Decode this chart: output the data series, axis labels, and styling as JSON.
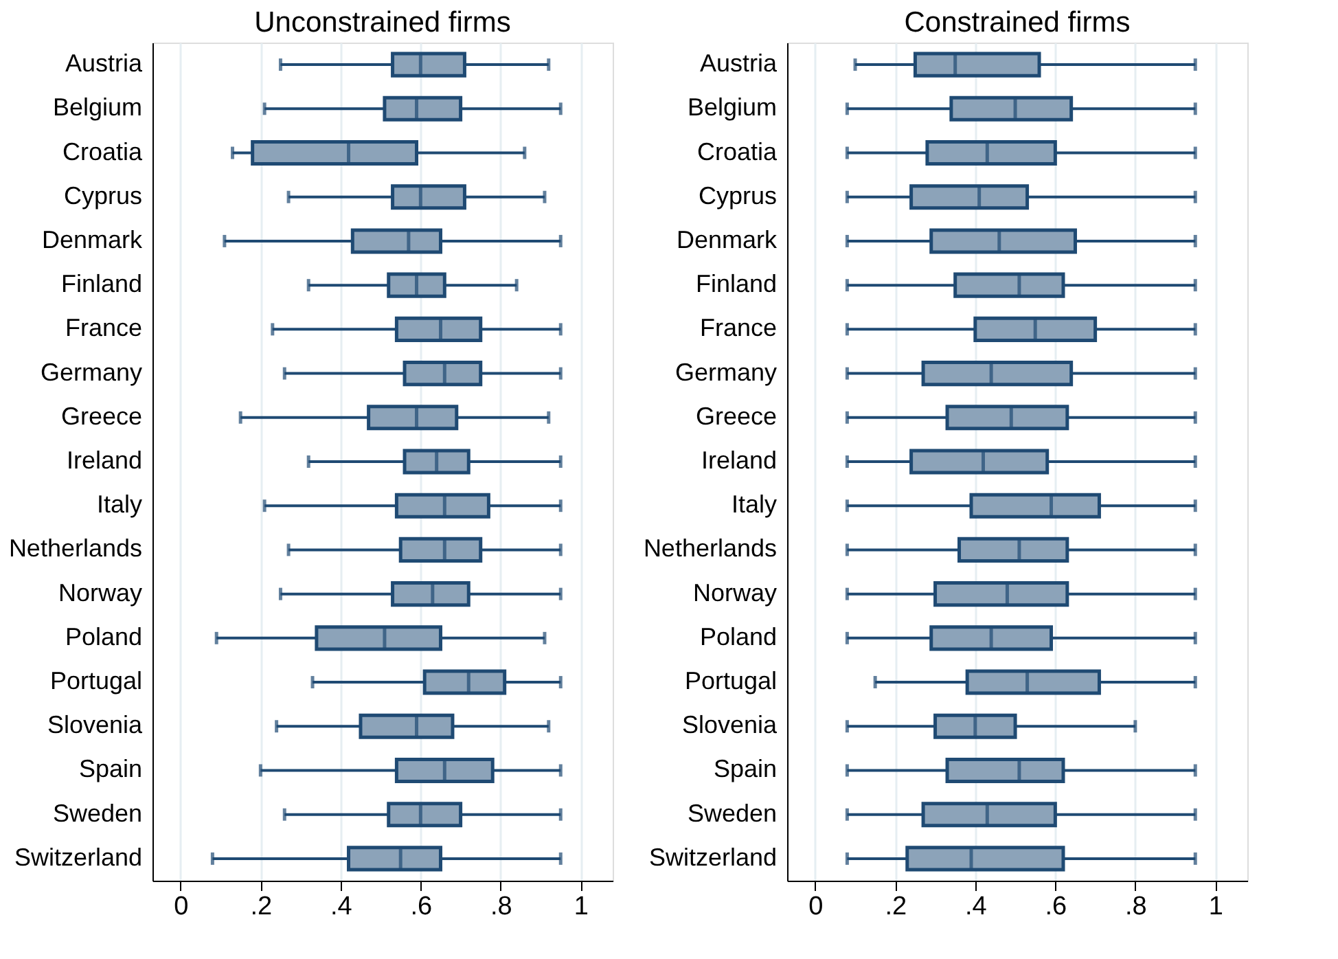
{
  "chart_data": [
    {
      "type": "box",
      "orientation": "horizontal",
      "title": "Unconstrained firms",
      "color": "#8ca3b9",
      "grid": "x",
      "categories": [
        "Austria",
        "Belgium",
        "Croatia",
        "Cyprus",
        "Denmark",
        "Finland",
        "France",
        "Germany",
        "Greece",
        "Ireland",
        "Italy",
        "Netherlands",
        "Norway",
        "Poland",
        "Portugal",
        "Slovenia",
        "Spain",
        "Sweden",
        "Switzerland"
      ],
      "boxes": [
        {
          "low": 0.25,
          "q1": 0.53,
          "median": 0.6,
          "q3": 0.71,
          "high": 0.92
        },
        {
          "low": 0.21,
          "q1": 0.51,
          "median": 0.59,
          "q3": 0.7,
          "high": 0.95
        },
        {
          "low": 0.13,
          "q1": 0.18,
          "median": 0.42,
          "q3": 0.59,
          "high": 0.86
        },
        {
          "low": 0.27,
          "q1": 0.53,
          "median": 0.6,
          "q3": 0.71,
          "high": 0.91
        },
        {
          "low": 0.11,
          "q1": 0.43,
          "median": 0.57,
          "q3": 0.65,
          "high": 0.95
        },
        {
          "low": 0.32,
          "q1": 0.52,
          "median": 0.59,
          "q3": 0.66,
          "high": 0.84
        },
        {
          "low": 0.23,
          "q1": 0.54,
          "median": 0.65,
          "q3": 0.75,
          "high": 0.95
        },
        {
          "low": 0.26,
          "q1": 0.56,
          "median": 0.66,
          "q3": 0.75,
          "high": 0.95
        },
        {
          "low": 0.15,
          "q1": 0.47,
          "median": 0.59,
          "q3": 0.69,
          "high": 0.92
        },
        {
          "low": 0.32,
          "q1": 0.56,
          "median": 0.64,
          "q3": 0.72,
          "high": 0.95
        },
        {
          "low": 0.21,
          "q1": 0.54,
          "median": 0.66,
          "q3": 0.77,
          "high": 0.95
        },
        {
          "low": 0.27,
          "q1": 0.55,
          "median": 0.66,
          "q3": 0.75,
          "high": 0.95
        },
        {
          "low": 0.25,
          "q1": 0.53,
          "median": 0.63,
          "q3": 0.72,
          "high": 0.95
        },
        {
          "low": 0.09,
          "q1": 0.34,
          "median": 0.51,
          "q3": 0.65,
          "high": 0.91
        },
        {
          "low": 0.33,
          "q1": 0.61,
          "median": 0.72,
          "q3": 0.81,
          "high": 0.95
        },
        {
          "low": 0.24,
          "q1": 0.45,
          "median": 0.59,
          "q3": 0.68,
          "high": 0.92
        },
        {
          "low": 0.2,
          "q1": 0.54,
          "median": 0.66,
          "q3": 0.78,
          "high": 0.95
        },
        {
          "low": 0.26,
          "q1": 0.52,
          "median": 0.6,
          "q3": 0.7,
          "high": 0.95
        },
        {
          "low": 0.08,
          "q1": 0.42,
          "median": 0.55,
          "q3": 0.65,
          "high": 0.95
        }
      ],
      "xlim": [
        -0.07,
        1.08
      ],
      "xticks": [
        0,
        {
          "value": 0.2,
          "label": ".2"
        },
        {
          "value": 0.4,
          "label": ".4"
        },
        {
          "value": 0.6,
          "label": ".6"
        },
        {
          "value": 0.8,
          "label": ".8"
        },
        1
      ]
    },
    {
      "type": "box",
      "orientation": "horizontal",
      "title": "Constrained firms",
      "color": "#8ca3b9",
      "grid": "x",
      "categories": [
        "Austria",
        "Belgium",
        "Croatia",
        "Cyprus",
        "Denmark",
        "Finland",
        "France",
        "Germany",
        "Greece",
        "Ireland",
        "Italy",
        "Netherlands",
        "Norway",
        "Poland",
        "Portugal",
        "Slovenia",
        "Spain",
        "Sweden",
        "Switzerland"
      ],
      "boxes": [
        {
          "low": 0.1,
          "q1": 0.25,
          "median": 0.35,
          "q3": 0.56,
          "high": 0.95
        },
        {
          "low": 0.08,
          "q1": 0.34,
          "median": 0.5,
          "q3": 0.64,
          "high": 0.95
        },
        {
          "low": 0.08,
          "q1": 0.28,
          "median": 0.43,
          "q3": 0.6,
          "high": 0.95
        },
        {
          "low": 0.08,
          "q1": 0.24,
          "median": 0.41,
          "q3": 0.53,
          "high": 0.95
        },
        {
          "low": 0.08,
          "q1": 0.29,
          "median": 0.46,
          "q3": 0.65,
          "high": 0.95
        },
        {
          "low": 0.08,
          "q1": 0.35,
          "median": 0.51,
          "q3": 0.62,
          "high": 0.95
        },
        {
          "low": 0.08,
          "q1": 0.4,
          "median": 0.55,
          "q3": 0.7,
          "high": 0.95
        },
        {
          "low": 0.08,
          "q1": 0.27,
          "median": 0.44,
          "q3": 0.64,
          "high": 0.95
        },
        {
          "low": 0.08,
          "q1": 0.33,
          "median": 0.49,
          "q3": 0.63,
          "high": 0.95
        },
        {
          "low": 0.08,
          "q1": 0.24,
          "median": 0.42,
          "q3": 0.58,
          "high": 0.95
        },
        {
          "low": 0.08,
          "q1": 0.39,
          "median": 0.59,
          "q3": 0.71,
          "high": 0.95
        },
        {
          "low": 0.08,
          "q1": 0.36,
          "median": 0.51,
          "q3": 0.63,
          "high": 0.95
        },
        {
          "low": 0.08,
          "q1": 0.3,
          "median": 0.48,
          "q3": 0.63,
          "high": 0.95
        },
        {
          "low": 0.08,
          "q1": 0.29,
          "median": 0.44,
          "q3": 0.59,
          "high": 0.95
        },
        {
          "low": 0.15,
          "q1": 0.38,
          "median": 0.53,
          "q3": 0.71,
          "high": 0.95
        },
        {
          "low": 0.08,
          "q1": 0.3,
          "median": 0.4,
          "q3": 0.5,
          "high": 0.8
        },
        {
          "low": 0.08,
          "q1": 0.33,
          "median": 0.51,
          "q3": 0.62,
          "high": 0.95
        },
        {
          "low": 0.08,
          "q1": 0.27,
          "median": 0.43,
          "q3": 0.6,
          "high": 0.95
        },
        {
          "low": 0.08,
          "q1": 0.23,
          "median": 0.39,
          "q3": 0.62,
          "high": 0.95
        }
      ],
      "xlim": [
        -0.07,
        1.08
      ],
      "xticks": [
        0,
        {
          "value": 0.2,
          "label": ".2"
        },
        {
          "value": 0.4,
          "label": ".4"
        },
        {
          "value": 0.6,
          "label": ".6"
        },
        {
          "value": 0.8,
          "label": ".8"
        },
        1
      ]
    }
  ]
}
